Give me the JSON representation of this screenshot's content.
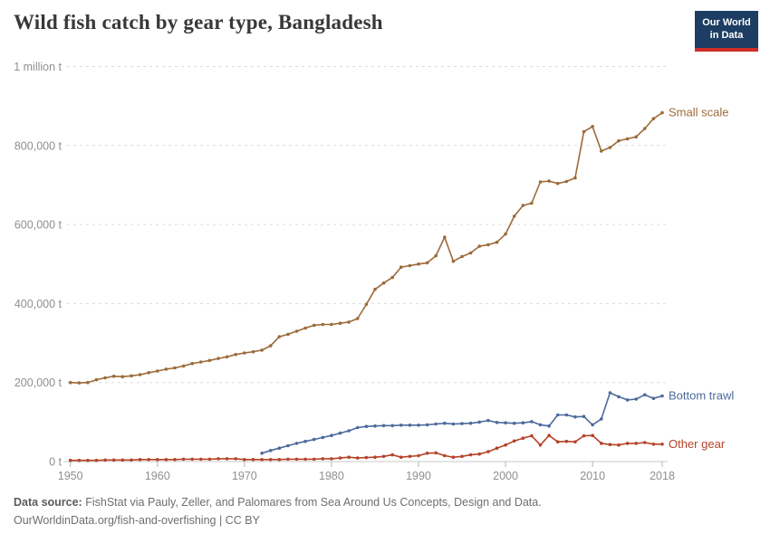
{
  "header": {
    "title": "Wild fish catch by gear type, Bangladesh"
  },
  "logo": {
    "line1": "Our World",
    "line2": "in Data",
    "bg_color": "#1d3d63",
    "accent_color": "#cf2e27"
  },
  "chart_data": {
    "type": "line",
    "title": "Wild fish catch by gear type, Bangladesh",
    "unit": "t",
    "xlim": [
      1950,
      2018
    ],
    "ylim": [
      0,
      1000000
    ],
    "grid": "horizontal-dashed",
    "legend_position": "end-of-line",
    "x_ticks": [
      1950,
      1960,
      1970,
      1980,
      1990,
      2000,
      2010,
      2018
    ],
    "y_ticks": [
      {
        "value": 0,
        "label": "0 t"
      },
      {
        "value": 200000,
        "label": "200,000 t"
      },
      {
        "value": 400000,
        "label": "400,000 t"
      },
      {
        "value": 600000,
        "label": "600,000 t"
      },
      {
        "value": 800000,
        "label": "800,000 t"
      },
      {
        "value": 1000000,
        "label": "1 million t"
      }
    ],
    "series": [
      {
        "name": "Small scale",
        "color": "#9C6B3A",
        "start_year": 1950,
        "values": [
          200000,
          199000,
          200000,
          207000,
          212000,
          216000,
          215000,
          217000,
          220000,
          225000,
          229000,
          234000,
          237000,
          242000,
          248000,
          252000,
          256000,
          261000,
          265000,
          271000,
          275000,
          278000,
          282000,
          293000,
          316000,
          322000,
          330000,
          338000,
          345000,
          347000,
          347000,
          350000,
          353000,
          362000,
          398000,
          436000,
          452000,
          466000,
          492000,
          496000,
          500000,
          503000,
          521000,
          568000,
          507000,
          519000,
          528000,
          545000,
          549000,
          555000,
          576000,
          621000,
          648000,
          654000,
          708000,
          710000,
          704000,
          709000,
          718000,
          835000,
          848000,
          786000,
          795000,
          812000,
          817000,
          822000,
          843000,
          868000,
          883000
        ]
      },
      {
        "name": "Bottom trawl",
        "color": "#4C6A9C",
        "start_year": 1972,
        "values": [
          21000,
          28000,
          34000,
          40000,
          46000,
          51000,
          56000,
          61000,
          66000,
          72000,
          78000,
          86000,
          89000,
          90000,
          91000,
          91000,
          92000,
          92000,
          92000,
          93000,
          95000,
          97000,
          95000,
          96000,
          97000,
          100000,
          104000,
          99000,
          98000,
          97000,
          98000,
          101000,
          93000,
          90000,
          118000,
          118000,
          113000,
          114000,
          93000,
          108000,
          174000,
          164000,
          156000,
          158000,
          169000,
          160000,
          166000
        ]
      },
      {
        "name": "Other gear",
        "color": "#B5432A",
        "start_year": 1950,
        "values": [
          3000,
          3000,
          3000,
          3000,
          4000,
          4000,
          4000,
          4000,
          5000,
          5000,
          5000,
          5000,
          5000,
          6000,
          6000,
          6000,
          6000,
          7000,
          7000,
          7000,
          5000,
          5000,
          5000,
          5000,
          5000,
          6000,
          6000,
          6000,
          6000,
          7000,
          7000,
          9000,
          11000,
          9000,
          10000,
          11000,
          13000,
          17000,
          11000,
          13000,
          15000,
          21000,
          22000,
          15000,
          11000,
          13000,
          17000,
          19000,
          25000,
          34000,
          42000,
          52000,
          59000,
          65000,
          42000,
          66000,
          50000,
          51000,
          50000,
          65000,
          66000,
          46000,
          43000,
          42000,
          46000,
          46000,
          48000,
          44000,
          44000
        ]
      }
    ]
  },
  "footer": {
    "source_label": "Data source:",
    "source_text": " FishStat via Pauly, Zeller, and Palomares from Sea Around Us Concepts, Design and Data.",
    "license_line": "OurWorldinData.org/fish-and-overfishing | CC BY"
  }
}
